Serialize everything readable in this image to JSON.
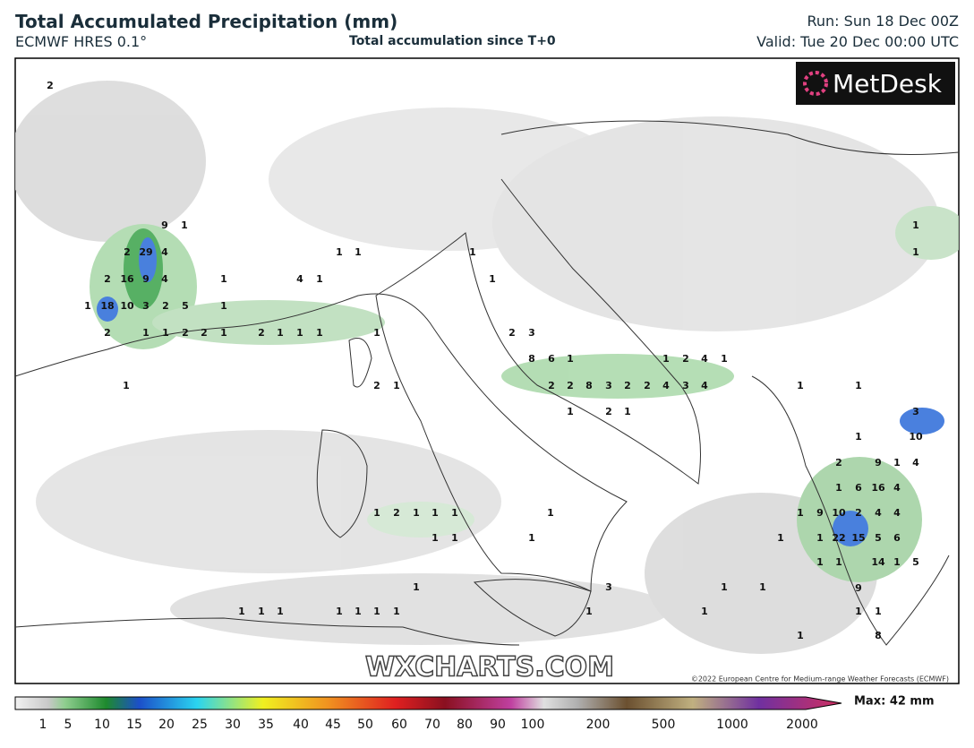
{
  "header": {
    "title": "Total Accumulated Precipitation (mm)",
    "model": "ECMWF HRES 0.1°",
    "subtitle": "Total accumulation since T+0",
    "run": "Run: Sun 18 Dec 00Z",
    "valid": "Valid: Tue 20 Dec 00:00 UTC"
  },
  "logo": "MetDesk",
  "watermark": "WXCHARTS.COM",
  "copyright": "©2022 European Centre for Medium-range Weather Forecasts (ECMWF)",
  "colorbar": {
    "ticks": [
      1,
      5,
      10,
      15,
      20,
      25,
      30,
      35,
      40,
      45,
      50,
      60,
      70,
      80,
      90,
      100,
      200,
      500,
      1000,
      2000
    ],
    "max_label": "Max: 42 mm"
  },
  "map": {
    "labels": [
      2,
      9,
      1,
      2,
      29,
      4,
      2,
      16,
      9,
      4,
      1,
      1,
      18,
      10,
      3,
      2,
      5,
      1,
      2,
      1,
      1,
      2,
      2,
      1,
      2,
      1,
      1,
      1,
      1,
      1,
      1,
      4,
      1,
      1,
      2,
      1,
      1,
      1,
      2,
      3,
      8,
      6,
      1,
      1,
      2,
      4,
      1,
      2,
      2,
      8,
      3,
      2,
      2,
      4,
      3,
      4,
      1,
      2,
      1,
      1,
      1,
      1,
      1,
      3,
      10,
      1,
      2,
      9,
      1,
      4,
      1,
      6,
      16,
      4,
      1,
      9,
      10,
      2,
      4,
      4,
      1,
      1,
      22,
      15,
      5,
      6,
      1,
      1,
      14,
      1,
      5,
      9,
      1,
      1,
      1,
      8,
      1,
      2,
      1,
      1,
      1,
      1,
      1,
      1,
      1,
      1,
      3,
      1,
      1,
      1,
      1,
      1,
      1,
      1,
      1,
      1,
      1,
      1
    ]
  }
}
